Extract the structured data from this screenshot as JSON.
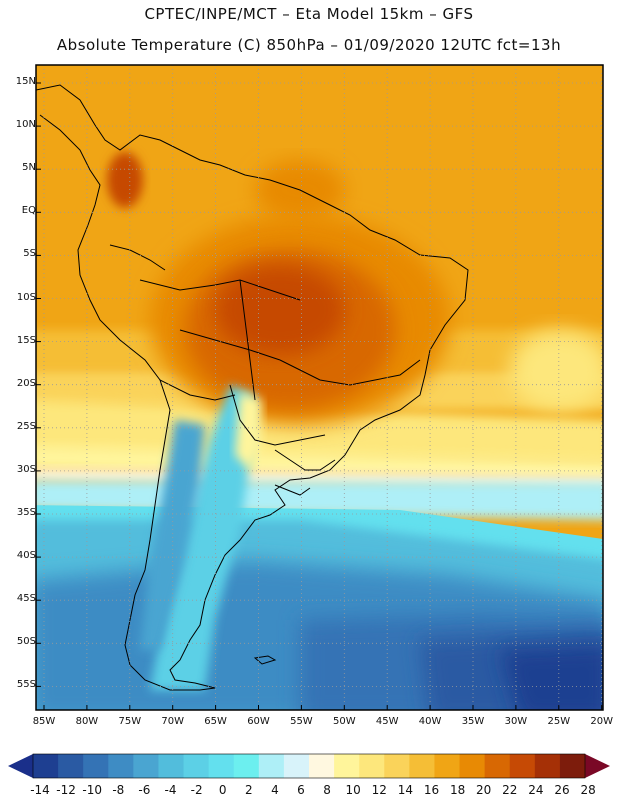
{
  "header": {
    "line1": "CPTEC/INPE/MCT –  Eta Model 15km – GFS",
    "line2": "Absolute Temperature (C) 850hPa – 01/09/2020 12UTC fct=13h"
  },
  "map": {
    "lat_ticks": [
      "15N",
      "10N",
      "5N",
      "EQ",
      "5S",
      "10S",
      "15S",
      "20S",
      "25S",
      "30S",
      "35S",
      "40S",
      "45S",
      "50S",
      "55S"
    ],
    "lon_ticks": [
      "85W",
      "80W",
      "75W",
      "70W",
      "65W",
      "60W",
      "55W",
      "50W",
      "45W",
      "40W",
      "35W",
      "30W",
      "25W",
      "20W"
    ]
  },
  "colorbar": {
    "labels": [
      "-14",
      "-12",
      "-10",
      "-8",
      "-6",
      "-4",
      "-2",
      "0",
      "2",
      "4",
      "6",
      "8",
      "10",
      "12",
      "14",
      "16",
      "18",
      "20",
      "22",
      "24",
      "26",
      "28"
    ],
    "colors": [
      "#1e3f91",
      "#2a5aa3",
      "#3473b5",
      "#3e8cc4",
      "#4aa5d1",
      "#52bddc",
      "#5cd0e6",
      "#63e0ee",
      "#6cefef",
      "#aeeff7",
      "#d8f3fa",
      "#fff8e0",
      "#fff59b",
      "#fde77c",
      "#fad35a",
      "#f5be36",
      "#f0a515",
      "#e88a04",
      "#d86803",
      "#c64a05",
      "#a53006",
      "#7d1c0c"
    ],
    "under_color": "#1a2f8a",
    "over_color": "#7a0826"
  }
}
